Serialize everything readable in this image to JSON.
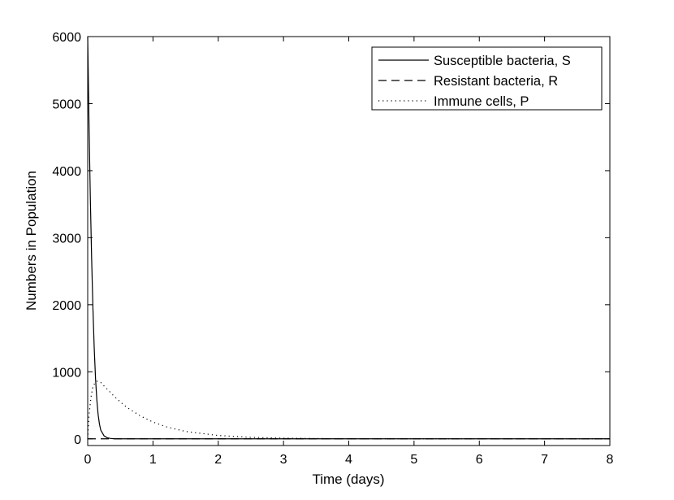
{
  "chart_data": {
    "type": "line",
    "title": "",
    "xlabel": "Time (days)",
    "ylabel": "Numbers in Population",
    "xlim": [
      0,
      8
    ],
    "ylim": [
      -100,
      6000
    ],
    "xticks": [
      0,
      1,
      2,
      3,
      4,
      5,
      6,
      7,
      8
    ],
    "yticks": [
      0,
      1000,
      2000,
      3000,
      4000,
      5000,
      6000
    ],
    "grid": false,
    "legend_position": "top-right",
    "series": [
      {
        "name": "Susceptible bacteria, S",
        "style": "solid",
        "color": "#000000",
        "x": [
          0,
          0.02,
          0.04,
          0.06,
          0.08,
          0.1,
          0.12,
          0.14,
          0.16,
          0.18,
          0.2,
          0.25,
          0.3,
          0.35,
          0.4,
          0.5,
          0.6,
          0.8,
          1,
          2,
          3,
          4,
          5,
          6,
          7,
          8
        ],
        "y": [
          6000,
          4700,
          3600,
          2700,
          1950,
          1350,
          900,
          580,
          360,
          220,
          130,
          45,
          15,
          5,
          2,
          0,
          0,
          0,
          0,
          0,
          0,
          0,
          0,
          0,
          0,
          0
        ]
      },
      {
        "name": "Resistant bacteria, R",
        "style": "dashed",
        "color": "#000000",
        "x": [
          0,
          1,
          2,
          3,
          4,
          5,
          6,
          7,
          8
        ],
        "y": [
          0,
          0,
          0,
          0,
          0,
          0,
          0,
          0,
          0
        ]
      },
      {
        "name": "Immune cells, P",
        "style": "dotted",
        "color": "#000000",
        "x": [
          0,
          0.02,
          0.05,
          0.08,
          0.12,
          0.15,
          0.2,
          0.3,
          0.4,
          0.5,
          0.6,
          0.8,
          1,
          1.2,
          1.5,
          2,
          2.5,
          3,
          3.5,
          4,
          5,
          6,
          7,
          8
        ],
        "y": [
          0,
          350,
          620,
          780,
          850,
          860,
          840,
          740,
          640,
          550,
          470,
          345,
          250,
          180,
          110,
          50,
          22,
          10,
          5,
          2,
          1,
          0,
          0,
          0
        ]
      }
    ]
  }
}
